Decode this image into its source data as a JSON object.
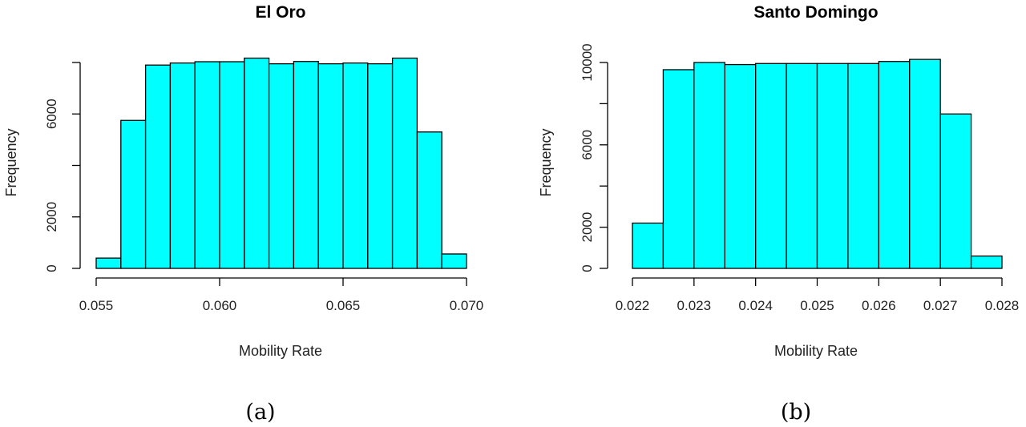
{
  "colors": {
    "bar_fill": "#00ffff",
    "bar_stroke": "#000000"
  },
  "panels": [
    {
      "caption": "(a)",
      "chart_data": {
        "type": "bar",
        "title": "El Oro",
        "xlabel": "Mobility Rate",
        "ylabel": "Frequency",
        "xlim": [
          0.055,
          0.07
        ],
        "ylim": [
          0,
          8000
        ],
        "x_ticks": [
          0.055,
          0.06,
          0.065,
          0.07
        ],
        "x_tick_labels": [
          "0.055",
          "0.060",
          "0.065",
          "0.070"
        ],
        "y_ticks": [
          0,
          2000,
          4000,
          6000,
          8000
        ],
        "y_tick_labels": [
          "0",
          "2000",
          "",
          "6000",
          ""
        ],
        "bins": [
          {
            "x0": 0.055,
            "x1": 0.056,
            "count": 400
          },
          {
            "x0": 0.056,
            "x1": 0.057,
            "count": 5750
          },
          {
            "x0": 0.057,
            "x1": 0.058,
            "count": 7900
          },
          {
            "x0": 0.058,
            "x1": 0.059,
            "count": 7980
          },
          {
            "x0": 0.059,
            "x1": 0.06,
            "count": 8030
          },
          {
            "x0": 0.06,
            "x1": 0.061,
            "count": 8030
          },
          {
            "x0": 0.061,
            "x1": 0.062,
            "count": 8170
          },
          {
            "x0": 0.062,
            "x1": 0.063,
            "count": 7950
          },
          {
            "x0": 0.063,
            "x1": 0.064,
            "count": 8040
          },
          {
            "x0": 0.064,
            "x1": 0.065,
            "count": 7950
          },
          {
            "x0": 0.065,
            "x1": 0.066,
            "count": 7980
          },
          {
            "x0": 0.066,
            "x1": 0.067,
            "count": 7950
          },
          {
            "x0": 0.067,
            "x1": 0.068,
            "count": 8170
          },
          {
            "x0": 0.068,
            "x1": 0.069,
            "count": 5300
          },
          {
            "x0": 0.069,
            "x1": 0.07,
            "count": 560
          }
        ]
      }
    },
    {
      "caption": "(b)",
      "chart_data": {
        "type": "bar",
        "title": "Santo Domingo",
        "xlabel": "Mobility Rate",
        "ylabel": "Frequency",
        "xlim": [
          0.022,
          0.028
        ],
        "ylim": [
          0,
          10000
        ],
        "x_ticks": [
          0.022,
          0.023,
          0.024,
          0.025,
          0.026,
          0.027,
          0.028
        ],
        "x_tick_labels": [
          "0.022",
          "0.023",
          "0.024",
          "0.025",
          "0.026",
          "0.027",
          "0.028"
        ],
        "y_ticks": [
          0,
          2000,
          4000,
          6000,
          8000,
          10000
        ],
        "y_tick_labels": [
          "0",
          "2000",
          "",
          "6000",
          "",
          "10000"
        ],
        "bins": [
          {
            "x0": 0.022,
            "x1": 0.0225,
            "count": 2200
          },
          {
            "x0": 0.0225,
            "x1": 0.023,
            "count": 9650
          },
          {
            "x0": 0.023,
            "x1": 0.0235,
            "count": 10000
          },
          {
            "x0": 0.0235,
            "x1": 0.024,
            "count": 9900
          },
          {
            "x0": 0.024,
            "x1": 0.0245,
            "count": 9950
          },
          {
            "x0": 0.0245,
            "x1": 0.025,
            "count": 9950
          },
          {
            "x0": 0.025,
            "x1": 0.0255,
            "count": 9950
          },
          {
            "x0": 0.0255,
            "x1": 0.026,
            "count": 9950
          },
          {
            "x0": 0.026,
            "x1": 0.0265,
            "count": 10050
          },
          {
            "x0": 0.0265,
            "x1": 0.027,
            "count": 10150
          },
          {
            "x0": 0.027,
            "x1": 0.0275,
            "count": 7500
          },
          {
            "x0": 0.0275,
            "x1": 0.028,
            "count": 600
          }
        ]
      }
    }
  ]
}
